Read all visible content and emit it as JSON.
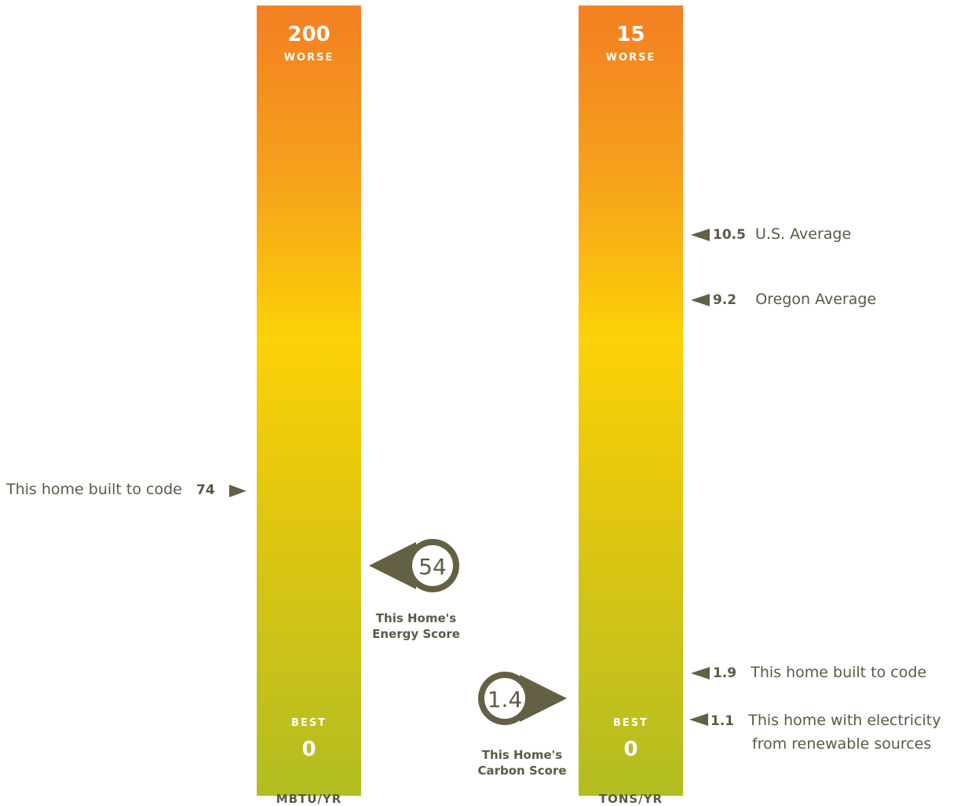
{
  "colors": {
    "marker": "#646044",
    "bar_top": "#f37f22",
    "bar_mid": "#fcd107",
    "bar_bottom": "#b1bd20"
  },
  "energy": {
    "top_value": "200",
    "top_label": "WORSE",
    "bottom_label": "BEST",
    "bottom_value": "0",
    "unit": "MBTU/YR",
    "code_value": "74",
    "code_label": "This home built to code",
    "score": "54",
    "score_caption_1": "This Home's",
    "score_caption_2": "Energy Score"
  },
  "carbon": {
    "top_value": "15",
    "top_label": "WORSE",
    "bottom_label": "BEST",
    "bottom_value": "0",
    "unit": "TONS/YR",
    "score": "1.4",
    "score_caption_1": "This Home's",
    "score_caption_2": "Carbon Score",
    "references": [
      {
        "value": "10.5",
        "label": "U.S. Average"
      },
      {
        "value": "9.2",
        "label": "Oregon Average"
      },
      {
        "value": "1.9",
        "label": "This home built to code"
      },
      {
        "value": "1.1",
        "label": "This home with electricity",
        "label2": "from renewable sources"
      }
    ]
  },
  "chart_data": [
    {
      "type": "bar",
      "unit": "MBTU/YR",
      "ylim": [
        0,
        200
      ],
      "score": 54,
      "reference": {
        "value": 74,
        "label": "This home built to code"
      }
    },
    {
      "type": "bar",
      "unit": "TONS/YR",
      "ylim": [
        0,
        15
      ],
      "score": 1.4,
      "references": [
        {
          "value": 10.5,
          "label": "U.S. Average"
        },
        {
          "value": 9.2,
          "label": "Oregon Average"
        },
        {
          "value": 1.9,
          "label": "This home built to code"
        },
        {
          "value": 1.1,
          "label": "This home with electricity from renewable sources"
        }
      ]
    }
  ]
}
